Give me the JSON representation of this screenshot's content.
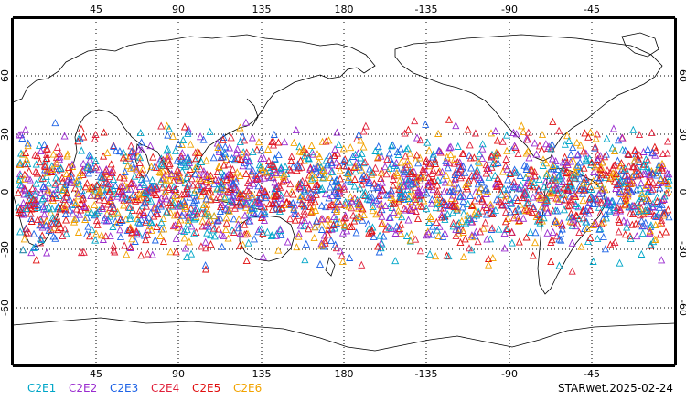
{
  "map": {
    "lon_ticks": [
      "45",
      "90",
      "135",
      "180",
      "-135",
      "-90",
      "-45"
    ],
    "lat_ticks_left": [
      "60",
      "30",
      "0",
      "-30",
      "-60"
    ],
    "lat_ticks_right": [
      "60",
      "30",
      "0",
      "-30",
      "-60"
    ],
    "lon_range": [
      0,
      360
    ],
    "lat_range": [
      -90,
      90
    ],
    "grid": "dotted"
  },
  "legend": {
    "items": [
      {
        "label": "C2E1",
        "color": "#00a6c8"
      },
      {
        "label": "C2E2",
        "color": "#9a2bcf"
      },
      {
        "label": "C2E3",
        "color": "#1e63e6"
      },
      {
        "label": "C2E4",
        "color": "#e0203a"
      },
      {
        "label": "C2E5",
        "color": "#e01010"
      },
      {
        "label": "C2E6",
        "color": "#f2a300"
      }
    ],
    "date_stamp": "STARwet.2025-02-24"
  }
}
